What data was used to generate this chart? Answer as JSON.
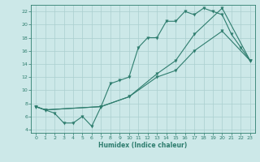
{
  "title": "",
  "xlabel": "Humidex (Indice chaleur)",
  "bg_color": "#cce8e8",
  "line_color": "#2e7d6e",
  "grid_color": "#aacfcf",
  "xlim": [
    -0.5,
    23.5
  ],
  "ylim": [
    3.5,
    23.0
  ],
  "xticks": [
    0,
    1,
    2,
    3,
    4,
    5,
    6,
    7,
    8,
    9,
    10,
    11,
    12,
    13,
    14,
    15,
    16,
    17,
    18,
    19,
    20,
    21,
    22,
    23
  ],
  "yticks": [
    4,
    6,
    8,
    10,
    12,
    14,
    16,
    18,
    20,
    22
  ],
  "line1_x": [
    0,
    1,
    2,
    3,
    4,
    5,
    6,
    7,
    8,
    9,
    10,
    11,
    12,
    13,
    14,
    15,
    16,
    17,
    18,
    19,
    20,
    21,
    22,
    23
  ],
  "line1_y": [
    7.5,
    7.0,
    6.5,
    5.0,
    5.0,
    6.0,
    4.5,
    7.5,
    11.0,
    11.5,
    12.0,
    16.5,
    18.0,
    18.0,
    20.5,
    20.5,
    22.0,
    21.5,
    22.5,
    22.0,
    21.5,
    18.5,
    16.5,
    14.5
  ],
  "line2_x": [
    0,
    1,
    7,
    10,
    13,
    15,
    17,
    20,
    23
  ],
  "line2_y": [
    7.5,
    7.0,
    7.5,
    9.0,
    12.0,
    13.0,
    16.0,
    19.0,
    14.5
  ],
  "line3_x": [
    0,
    1,
    7,
    10,
    13,
    15,
    17,
    20,
    23
  ],
  "line3_y": [
    7.5,
    7.0,
    7.5,
    9.0,
    12.5,
    14.5,
    18.5,
    22.5,
    14.5
  ]
}
